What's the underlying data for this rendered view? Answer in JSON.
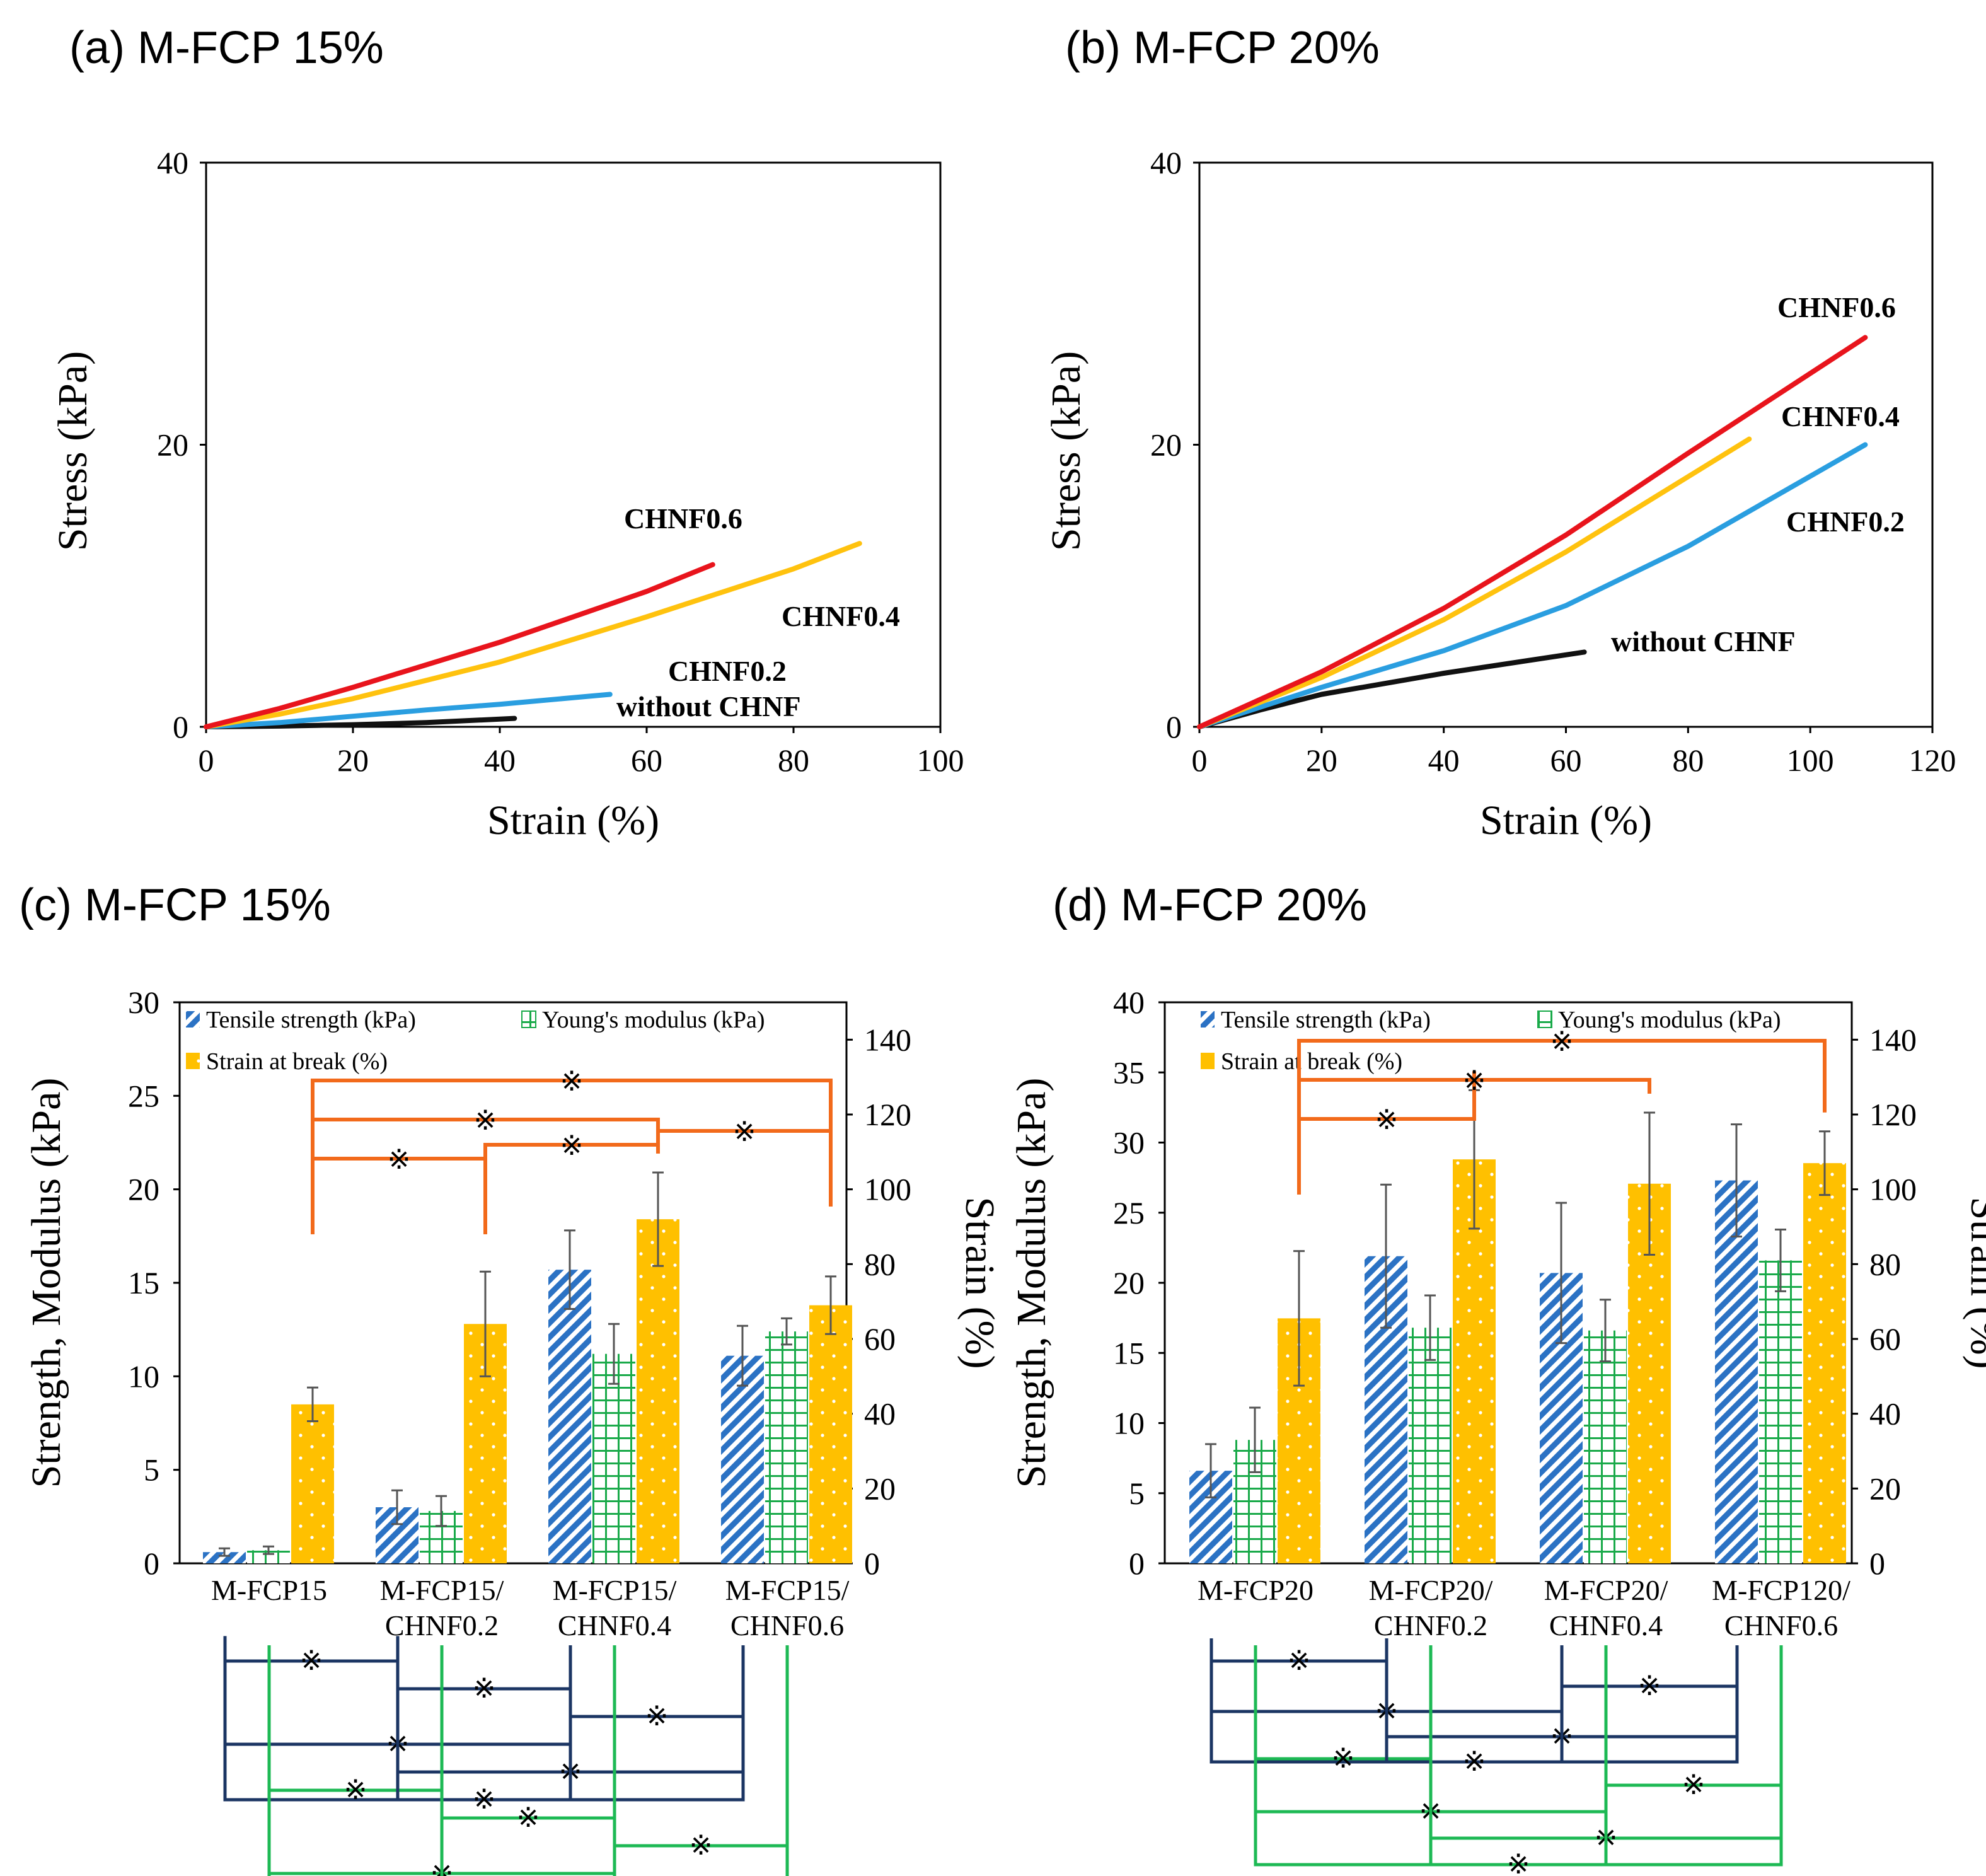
{
  "colors": {
    "chnf06": "#e8141c",
    "chnf04": "#ffc20e",
    "chnf02": "#2a9ee0",
    "without": "#111111",
    "tensile": "#2b72c4",
    "modulus": "#1aaa4a",
    "strain_bar": "#ffc000",
    "sig_navy": "#1b3563",
    "sig_green": "#1db954",
    "sig_orange": "#f26a1b"
  },
  "sig_mark": "※",
  "chart_data": [
    {
      "id": "a",
      "type": "line",
      "title": "(a) M-FCP 15%",
      "xlabel": "Strain (%)",
      "ylabel": "Stress (kPa)",
      "xlim": [
        0,
        100
      ],
      "ylim": [
        0,
        40
      ],
      "xticks": [
        "0",
        "20",
        "40",
        "60",
        "80",
        "100"
      ],
      "yticks": [
        "0",
        "20",
        "40"
      ],
      "series": [
        {
          "name": "without CHNF",
          "label": "without CHNF",
          "color_key": "without",
          "points": [
            [
              0,
              0
            ],
            [
              10,
              0.05
            ],
            [
              20,
              0.15
            ],
            [
              30,
              0.3
            ],
            [
              42,
              0.6
            ]
          ]
        },
        {
          "name": "CHNF0.2",
          "label": "CHNF0.2",
          "color_key": "chnf02",
          "points": [
            [
              0,
              0
            ],
            [
              10,
              0.3
            ],
            [
              20,
              0.75
            ],
            [
              30,
              1.2
            ],
            [
              40,
              1.6
            ],
            [
              55,
              2.3
            ]
          ]
        },
        {
          "name": "CHNF0.4",
          "label": "CHNF0.4",
          "color_key": "chnf04",
          "points": [
            [
              0,
              0
            ],
            [
              10,
              0.9
            ],
            [
              20,
              2.0
            ],
            [
              40,
              4.6
            ],
            [
              60,
              7.8
            ],
            [
              80,
              11.2
            ],
            [
              89,
              13.0
            ]
          ]
        },
        {
          "name": "CHNF0.6",
          "label": "CHNF0.6",
          "color_key": "chnf06",
          "points": [
            [
              0,
              0
            ],
            [
              10,
              1.3
            ],
            [
              20,
              2.8
            ],
            [
              40,
              6.0
            ],
            [
              60,
              9.6
            ],
            [
              69,
              11.5
            ]
          ]
        }
      ]
    },
    {
      "id": "b",
      "type": "line",
      "title": "(b) M-FCP 20%",
      "xlabel": "Strain (%)",
      "ylabel": "Stress (kPa)",
      "xlim": [
        0,
        120
      ],
      "ylim": [
        0,
        40
      ],
      "xticks": [
        "0",
        "20",
        "40",
        "60",
        "80",
        "100",
        "120"
      ],
      "yticks": [
        "0",
        "20",
        "40"
      ],
      "series": [
        {
          "name": "without CHNF",
          "label": "without CHNF",
          "color_key": "without",
          "points": [
            [
              0,
              0
            ],
            [
              10,
              1.2
            ],
            [
              20,
              2.3
            ],
            [
              40,
              3.8
            ],
            [
              63,
              5.3
            ]
          ]
        },
        {
          "name": "CHNF0.2",
          "label": "CHNF0.2",
          "color_key": "chnf02",
          "points": [
            [
              0,
              0
            ],
            [
              20,
              2.8
            ],
            [
              40,
              5.4
            ],
            [
              60,
              8.6
            ],
            [
              80,
              12.8
            ],
            [
              109,
              20.0
            ]
          ]
        },
        {
          "name": "CHNF0.4",
          "label": "CHNF0.4",
          "color_key": "chnf04",
          "points": [
            [
              0,
              0
            ],
            [
              20,
              3.5
            ],
            [
              40,
              7.6
            ],
            [
              60,
              12.4
            ],
            [
              90,
              20.4
            ]
          ]
        },
        {
          "name": "CHNF0.6",
          "label": "CHNF0.6",
          "color_key": "chnf06",
          "points": [
            [
              0,
              0
            ],
            [
              20,
              3.9
            ],
            [
              40,
              8.4
            ],
            [
              60,
              13.6
            ],
            [
              80,
              19.4
            ],
            [
              109,
              27.6
            ]
          ]
        }
      ]
    },
    {
      "id": "c",
      "type": "bar",
      "title": "(c) M-FCP 15%",
      "ylabel": "Strength, Modulus (kPa)",
      "y2label": "Strain (%)",
      "ylim": [
        0,
        30
      ],
      "y2lim": [
        0,
        150
      ],
      "yticks": [
        "0",
        "5",
        "10",
        "15",
        "20",
        "25",
        "30"
      ],
      "y2ticks": [
        "0",
        "20",
        "40",
        "60",
        "80",
        "100",
        "120",
        "140"
      ],
      "categories": [
        [
          "M-FCP15"
        ],
        [
          "M-FCP15/",
          "CHNF0.2"
        ],
        [
          "M-FCP15/",
          "CHNF0.4"
        ],
        [
          "M-FCP15/",
          "CHNF0.6"
        ]
      ],
      "legend": [
        "Tensile strength (kPa)",
        "Young's modulus (kPa)",
        "Strain at break (%)"
      ],
      "series": [
        {
          "name": "Tensile strength (kPa)",
          "axis": "left",
          "values": [
            0.6,
            3.0,
            15.7,
            11.1
          ],
          "errors": [
            0.2,
            0.9,
            2.1,
            1.6
          ]
        },
        {
          "name": "Young's modulus (kPa)",
          "axis": "left",
          "values": [
            0.7,
            2.8,
            11.2,
            12.4
          ],
          "errors": [
            0.2,
            0.8,
            1.6,
            0.7
          ]
        },
        {
          "name": "Strain at break (%)",
          "axis": "right",
          "values": [
            42.5,
            64.0,
            92.0,
            69.0
          ],
          "errors": [
            4.5,
            14.0,
            12.5,
            7.7
          ]
        }
      ],
      "brackets_top": [
        [
          0,
          1
        ],
        [
          0,
          2
        ],
        [
          0,
          3
        ],
        [
          1,
          2
        ],
        [
          2,
          3
        ]
      ],
      "brackets_tensile": [
        [
          0,
          1
        ],
        [
          1,
          2
        ],
        [
          2,
          3
        ],
        [
          0,
          2
        ],
        [
          1,
          3
        ],
        [
          0,
          3
        ]
      ],
      "brackets_modulus": [
        [
          0,
          1
        ],
        [
          1,
          2
        ],
        [
          2,
          3
        ],
        [
          0,
          2
        ],
        [
          1,
          3
        ],
        [
          0,
          3
        ]
      ]
    },
    {
      "id": "d",
      "type": "bar",
      "title": "(d) M-FCP 20%",
      "ylabel": "Strength, Modulus (kPa)",
      "y2label": "Strain (%)",
      "ylim": [
        0,
        40
      ],
      "y2lim": [
        0,
        150
      ],
      "yticks": [
        "0",
        "5",
        "10",
        "15",
        "20",
        "25",
        "30",
        "35",
        "40"
      ],
      "y2ticks": [
        "0",
        "20",
        "40",
        "60",
        "80",
        "100",
        "120",
        "140"
      ],
      "categories": [
        [
          "M-FCP20"
        ],
        [
          "M-FCP20/",
          "CHNF0.2"
        ],
        [
          "M-FCP20/",
          "CHNF0.4"
        ],
        [
          "M-FCP120/",
          "CHNF0.6"
        ]
      ],
      "legend": [
        "Tensile strength (kPa)",
        "Young's modulus (kPa)",
        "Strain at break (%)"
      ],
      "series": [
        {
          "name": "Tensile strength (kPa)",
          "axis": "left",
          "values": [
            6.6,
            21.9,
            20.7,
            27.3
          ],
          "errors": [
            1.9,
            5.1,
            5.0,
            4.0
          ]
        },
        {
          "name": "Young's modulus (kPa)",
          "axis": "left",
          "values": [
            8.8,
            16.8,
            16.6,
            21.6
          ],
          "errors": [
            2.3,
            2.3,
            2.2,
            2.2
          ]
        },
        {
          "name": "Strain at break (%)",
          "axis": "right",
          "values": [
            65.5,
            108.0,
            101.5,
            107.0
          ],
          "errors": [
            18.0,
            18.5,
            19.0,
            8.5
          ]
        }
      ],
      "brackets_top": [
        [
          0,
          1
        ],
        [
          0,
          2
        ],
        [
          0,
          3
        ]
      ],
      "brackets_tensile": [
        [
          0,
          1
        ],
        [
          2,
          3
        ],
        [
          0,
          2
        ],
        [
          1,
          3
        ],
        [
          0,
          3
        ]
      ],
      "brackets_modulus": [
        [
          0,
          1
        ],
        [
          2,
          3
        ],
        [
          0,
          2
        ],
        [
          1,
          3
        ],
        [
          0,
          3
        ]
      ]
    }
  ]
}
